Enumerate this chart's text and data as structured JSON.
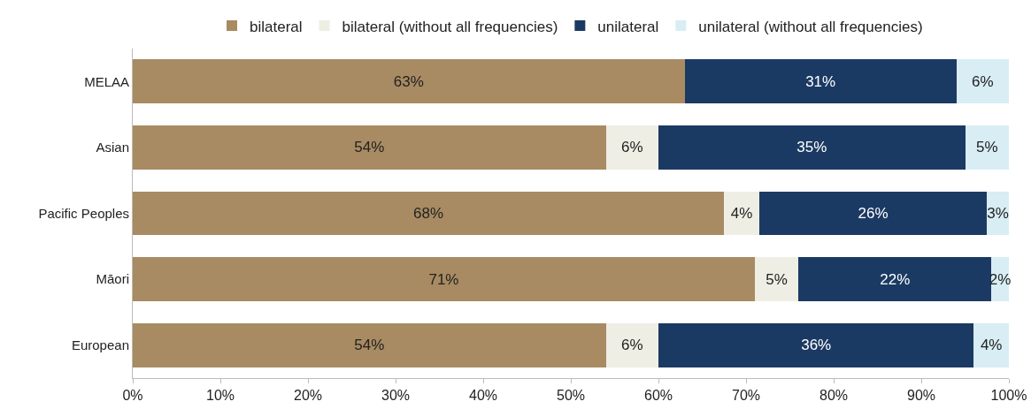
{
  "chart_data": {
    "type": "bar",
    "orientation": "horizontal",
    "stacked": true,
    "categories": [
      "MELAA",
      "Asian",
      "Pacific Peoples",
      "Māori",
      "European"
    ],
    "series": [
      {
        "name": "bilateral",
        "color": "#a88b62",
        "values": [
          63,
          54,
          67.5,
          71,
          54
        ],
        "value_labels": [
          "63%",
          "54%",
          "68%",
          "71%",
          "54%"
        ]
      },
      {
        "name": "bilateral (without all frequencies)",
        "color": "#eeeee4",
        "values": [
          null,
          6,
          4,
          5,
          6
        ],
        "value_labels": [
          null,
          "6%",
          "4%",
          "5%",
          "6%"
        ]
      },
      {
        "name": "unilateral",
        "color": "#1b3a63",
        "values": [
          31,
          35,
          26,
          22,
          36
        ],
        "value_labels": [
          "31%",
          "35%",
          "26%",
          "22%",
          "36%"
        ]
      },
      {
        "name": "unilateral (without all frequencies)",
        "color": "#d8edf4",
        "values": [
          6,
          5,
          2.5,
          2,
          4
        ],
        "value_labels": [
          "6%",
          "5%",
          "3%",
          "2%",
          "4%"
        ]
      }
    ],
    "xlim": [
      0,
      100
    ],
    "xticks": [
      {
        "value": 0,
        "label": "0%"
      },
      {
        "value": 10,
        "label": "10%"
      },
      {
        "value": 20,
        "label": "20%"
      },
      {
        "value": 30,
        "label": "30%"
      },
      {
        "value": 40,
        "label": "40%"
      },
      {
        "value": 50,
        "label": "50%"
      },
      {
        "value": 60,
        "label": "60%"
      },
      {
        "value": 70,
        "label": "70%"
      },
      {
        "value": 80,
        "label": "80%"
      },
      {
        "value": 90,
        "label": "90%"
      },
      {
        "value": 100,
        "label": "100%"
      }
    ],
    "grid": false,
    "legend": "top"
  }
}
